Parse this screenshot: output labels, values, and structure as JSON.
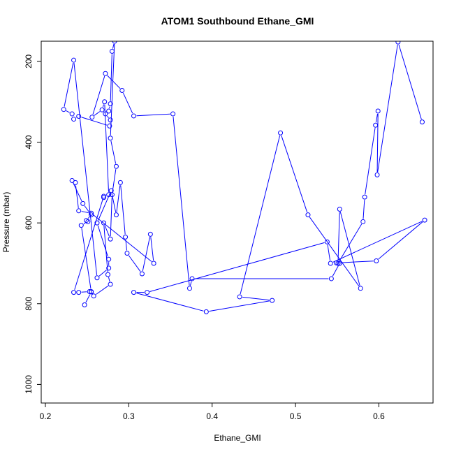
{
  "chart_data": {
    "type": "line",
    "title": "ATOM1 Southbound Ethane_GMI",
    "xlabel": "Ethane_GMI",
    "ylabel": "Pressure (mbar)",
    "xlim": [
      0.195,
      0.665
    ],
    "ylim": [
      1046,
      150
    ],
    "y_reversed": true,
    "x_ticks": [
      0.2,
      0.3,
      0.4,
      0.5,
      0.6
    ],
    "x_tick_labels": [
      "0.2",
      "0.3",
      "0.4",
      "0.5",
      "0.6"
    ],
    "y_ticks": [
      200,
      400,
      600,
      800,
      1000
    ],
    "y_tick_labels": [
      "200",
      "400",
      "600",
      "800",
      "1000"
    ],
    "grid": false,
    "legend": "none",
    "series_color": "#0000ff",
    "marker": "open-circle",
    "series": [
      {
        "points": [
          [
            0.247,
            803
          ],
          [
            0.255,
            771
          ],
          [
            0.258,
            781
          ],
          [
            0.278,
            752
          ],
          [
            0.275,
            728
          ],
          [
            0.27,
            600
          ],
          [
            0.278,
            640
          ],
          [
            0.28,
            530
          ],
          [
            0.285,
            460
          ],
          [
            0.278,
            390
          ],
          [
            0.283,
            150
          ],
          [
            0.28,
            175
          ],
          [
            0.278,
            305
          ],
          [
            0.276,
            323
          ],
          [
            0.272,
            330
          ],
          [
            0.278,
            345
          ],
          [
            0.277,
            360
          ],
          [
            0.24,
            336
          ],
          [
            0.234,
            343
          ],
          [
            0.232,
            330
          ],
          [
            0.222,
            319
          ],
          [
            0.234,
            197
          ],
          [
            0.262,
            736
          ],
          [
            0.276,
            712
          ],
          [
            0.276,
            690
          ],
          [
            0.262,
            600
          ],
          [
            0.279,
            520
          ],
          [
            0.285,
            580
          ],
          [
            0.29,
            500
          ],
          [
            0.296,
            635
          ],
          [
            0.298,
            675
          ],
          [
            0.316,
            726
          ],
          [
            0.326,
            628
          ],
          [
            0.33,
            700
          ],
          [
            0.255,
            576
          ],
          [
            0.24,
            570
          ],
          [
            0.236,
            500
          ],
          [
            0.232,
            495
          ],
          [
            0.245,
            552
          ],
          [
            0.255,
            580
          ],
          [
            0.249,
            594
          ],
          [
            0.251,
            597
          ],
          [
            0.243,
            606
          ],
          [
            0.255,
            770
          ],
          [
            0.253,
            770
          ],
          [
            0.24,
            772
          ],
          [
            0.234,
            772
          ],
          [
            0.27,
            534
          ],
          [
            0.27,
            537
          ],
          [
            0.276,
            530
          ],
          [
            0.271,
            300
          ],
          [
            0.268,
            320
          ],
          [
            0.256,
            338
          ],
          [
            0.272,
            230
          ],
          [
            0.292,
            272
          ],
          [
            0.306,
            335
          ],
          [
            0.353,
            330
          ],
          [
            0.373,
            762
          ],
          [
            0.376,
            738
          ],
          [
            0.543,
            738
          ],
          [
            0.553,
            700
          ],
          [
            0.549,
            699
          ],
          [
            0.597,
            694
          ],
          [
            0.655,
            593
          ],
          [
            0.542,
            700
          ],
          [
            0.538,
            647
          ],
          [
            0.322,
            772
          ],
          [
            0.306,
            772
          ],
          [
            0.393,
            820
          ],
          [
            0.472,
            792
          ],
          [
            0.433,
            783
          ],
          [
            0.482,
            377
          ],
          [
            0.515,
            580
          ],
          [
            0.578,
            762
          ],
          [
            0.553,
            566
          ],
          [
            0.551,
            700
          ],
          [
            0.581,
            597
          ],
          [
            0.583,
            536
          ],
          [
            0.596,
            358
          ],
          [
            0.599,
            323
          ],
          [
            0.598,
            481
          ],
          [
            0.623,
            152
          ],
          [
            0.652,
            350
          ]
        ]
      }
    ]
  }
}
